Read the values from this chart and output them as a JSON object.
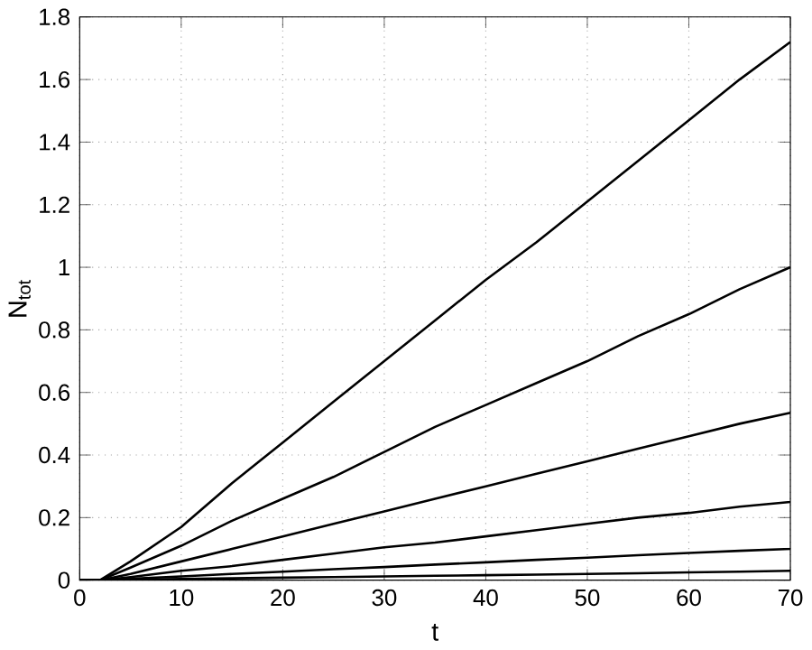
{
  "chart_data": {
    "type": "line",
    "xlabel": "t",
    "ylabel": "N$_{tot}$",
    "x": [
      0,
      2,
      5,
      10,
      15,
      20,
      25,
      30,
      35,
      40,
      45,
      50,
      55,
      60,
      65,
      70
    ],
    "series": [
      {
        "color": "#000000",
        "values": [
          0,
          0,
          0.06,
          0.17,
          0.31,
          0.44,
          0.57,
          0.7,
          0.83,
          0.96,
          1.08,
          1.21,
          1.34,
          1.47,
          1.6,
          1.72
        ]
      },
      {
        "color": "#000000",
        "values": [
          0,
          0,
          0.04,
          0.11,
          0.19,
          0.26,
          0.33,
          0.41,
          0.49,
          0.56,
          0.63,
          0.7,
          0.78,
          0.85,
          0.93,
          1.0
        ]
      },
      {
        "color": "#000000",
        "values": [
          0,
          0,
          0.02,
          0.06,
          0.1,
          0.14,
          0.18,
          0.22,
          0.26,
          0.3,
          0.34,
          0.38,
          0.42,
          0.46,
          0.5,
          0.535
        ]
      },
      {
        "color": "#000000",
        "values": [
          0,
          0,
          0.01,
          0.03,
          0.045,
          0.065,
          0.085,
          0.105,
          0.12,
          0.14,
          0.16,
          0.18,
          0.2,
          0.215,
          0.235,
          0.25
        ]
      },
      {
        "color": "#000000",
        "values": [
          0,
          0,
          0.005,
          0.012,
          0.02,
          0.027,
          0.035,
          0.042,
          0.05,
          0.057,
          0.065,
          0.072,
          0.08,
          0.087,
          0.094,
          0.1
        ]
      },
      {
        "color": "#000000",
        "values": [
          0,
          0,
          0.002,
          0.004,
          0.006,
          0.008,
          0.01,
          0.012,
          0.014,
          0.016,
          0.018,
          0.02,
          0.022,
          0.025,
          0.027,
          0.03
        ]
      }
    ],
    "xlim": [
      0,
      70
    ],
    "ylim": [
      0,
      1.8
    ],
    "xticks": [
      0,
      10,
      20,
      30,
      40,
      50,
      60,
      70
    ],
    "yticks": [
      0,
      0.2,
      0.4,
      0.6,
      0.8,
      1,
      1.2,
      1.4,
      1.6,
      1.8
    ],
    "grid": true,
    "line_style": "solid",
    "marker": "none"
  }
}
